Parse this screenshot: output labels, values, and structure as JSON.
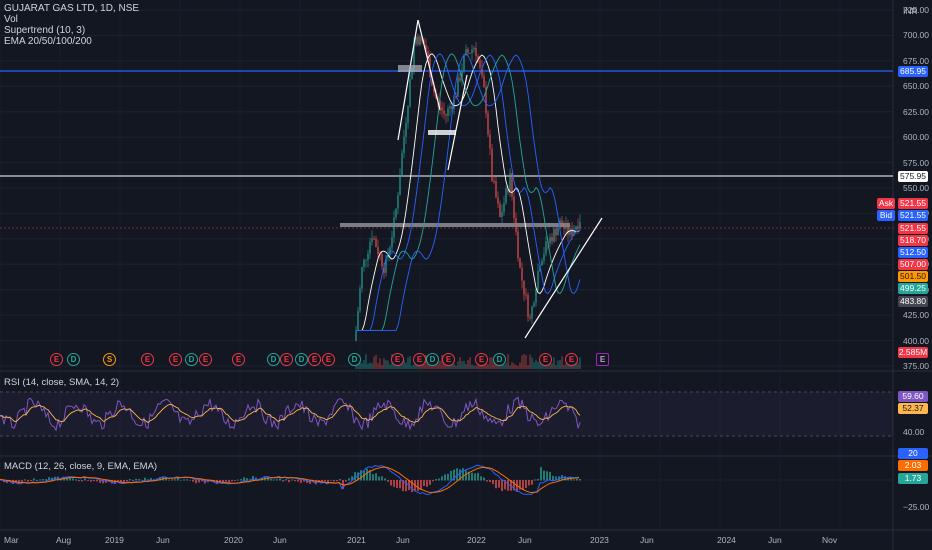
{
  "legend": {
    "title": "GUJARAT GAS LTD, 1D, NSE",
    "vol": "Vol",
    "supertrend": "Supertrend (10, 3)",
    "ema": "EMA 20/50/100/200"
  },
  "currency": "INR",
  "price_axis": [
    "725.00",
    "700.00",
    "675.00",
    "650.00",
    "625.00",
    "600.00",
    "575.00",
    "550.00",
    "525.00",
    "500.00",
    "475.00",
    "450.00",
    "425.00",
    "400.00",
    "375.00"
  ],
  "price_tags": [
    {
      "label": "685.95",
      "bg": "#2962ff",
      "fg": "#ffffff",
      "key": "hline-blue"
    },
    {
      "label": "575.95",
      "bg": "#ffffff",
      "fg": "#131722",
      "key": "hline-white"
    },
    {
      "label": "Ask",
      "bg": "#f23645",
      "fg": "#ffffff",
      "key": "ask-label"
    },
    {
      "label": "521.55",
      "bg": "#f23645",
      "fg": "#ffffff",
      "key": "ask-price"
    },
    {
      "label": "Bid",
      "bg": "#2962ff",
      "fg": "#ffffff",
      "key": "bid-label"
    },
    {
      "label": "521.55",
      "bg": "#2962ff",
      "fg": "#ffffff",
      "key": "bid-price"
    },
    {
      "label": "521.55",
      "bg": "#f23645",
      "fg": "#ffffff",
      "key": "last-price"
    },
    {
      "label": "518.70",
      "bg": "#f23645",
      "fg": "#ffffff",
      "key": "ema20"
    },
    {
      "label": "512.50",
      "bg": "#2962ff",
      "fg": "#ffffff",
      "key": "ema50"
    },
    {
      "label": "507.00",
      "bg": "#f23645",
      "fg": "#ffffff",
      "key": "supertrend"
    },
    {
      "label": "501.50",
      "bg": "#ff9800",
      "fg": "#131722",
      "key": "ema100"
    },
    {
      "label": "499.25",
      "bg": "#26a69a",
      "fg": "#ffffff",
      "key": "ema200"
    },
    {
      "label": "483.80",
      "bg": "#434651",
      "fg": "#ffffff",
      "key": "level"
    },
    {
      "label": "2.585M",
      "bg": "#f23645",
      "fg": "#ffffff",
      "key": "volume"
    }
  ],
  "rsi": {
    "label": "RSI (14, close, SMA, 14, 2)",
    "axis": [
      "40.00",
      "20.00"
    ],
    "value_tag": "59.60",
    "sma_tag": "52.37"
  },
  "macd": {
    "label": "MACD (12, 26, close, 9, EMA, EMA)",
    "axis": [
      "−25.00"
    ],
    "tags": [
      "20",
      "2.03",
      "1.73"
    ]
  },
  "time_axis": [
    "Mar",
    "Aug",
    "2019",
    "Jun",
    "2020",
    "Jun",
    "2021",
    "Jun",
    "2022",
    "Jun",
    "2023",
    "Jun",
    "2024",
    "Jun",
    "Nov"
  ],
  "events": [
    "E",
    "D",
    "S",
    "E",
    "E",
    "D",
    "E",
    "E",
    "D",
    "E",
    "D",
    "E",
    "E",
    "D",
    "E",
    "E",
    "D",
    "E",
    "E",
    "D",
    "E",
    "E"
  ],
  "colors": {
    "background": "#131722",
    "up": "#26a69a",
    "down": "#ef5350",
    "rsi_line": "#7e57c2",
    "rsi_sma": "#ffb74d",
    "macd": "#2962ff",
    "signal": "#ff6d00"
  },
  "chart_data": {
    "type": "line",
    "title": "GUJARAT GAS LTD, 1D, NSE",
    "ylabel": "INR",
    "ylim": [
      370,
      740
    ],
    "x": [
      "2018-03",
      "2018-08",
      "2019-01",
      "2019-06",
      "2020-01",
      "2020-06",
      "2021-01",
      "2021-06",
      "2022-01",
      "2022-06",
      "2022-12"
    ],
    "series": [
      {
        "values": [
          null,
          null,
          null,
          null,
          null,
          null,
          465,
          695,
          640,
          440,
          521.55
        ]
      }
    ],
    "horizontal_lines": [
      685.95,
      575.95,
      528
    ]
  }
}
